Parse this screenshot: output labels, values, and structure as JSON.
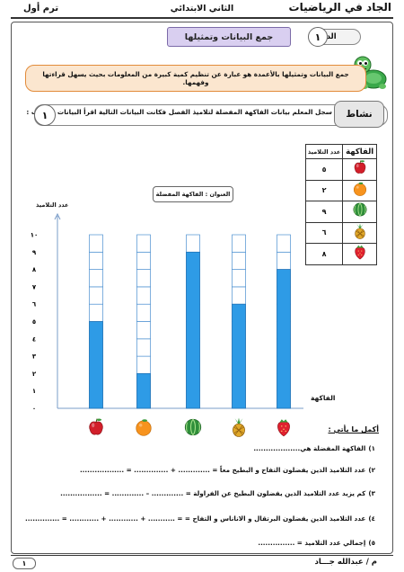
{
  "header": {
    "left": "ترم أول",
    "center": "الثاني الابتدائي",
    "right": "الجاد في الرياضيات"
  },
  "lesson": {
    "label": "الدرس",
    "number": "١",
    "title": "جمع البيانات وتمثيلها"
  },
  "definition": "جمع البيانات وتمثيلها بالأعمدة هو عبارة عن تنظيم كمية كبيرة من المعلومات بحيث يسهل قراءتها وفهمها.",
  "activity": {
    "label": "نشاط",
    "number": "١",
    "text": "سجل المعلم بيانات الفاكهة المفضلة لتلاميذ الفصل فكانت البيانات التالية اقرأ البيانات ثم أجب :"
  },
  "table": {
    "headers": [
      "الفاكهة",
      "عدد التلاميذ"
    ],
    "rows": [
      {
        "fruit": "apple-icon",
        "count": "٥"
      },
      {
        "fruit": "orange-icon",
        "count": "٢"
      },
      {
        "fruit": "watermelon-icon",
        "count": "٩"
      },
      {
        "fruit": "pineapple-icon",
        "count": "٦"
      },
      {
        "fruit": "strawberry-icon",
        "count": "٨"
      }
    ]
  },
  "chart_data": {
    "type": "bar",
    "title": "العنوان : الفاكهة المفضلة",
    "ylabel": "عدد التلاميذ",
    "xlabel": "الفاكهة",
    "y_ticks": [
      "٠",
      "١",
      "٢",
      "٣",
      "٤",
      "٥",
      "٦",
      "٧",
      "٨",
      "٩",
      "١٠"
    ],
    "ylim": [
      0,
      10
    ],
    "categories": [
      "apple-icon",
      "orange-icon",
      "watermelon-icon",
      "pineapple-icon",
      "strawberry-icon"
    ],
    "values": [
      5,
      2,
      9,
      6,
      8
    ],
    "bar_color": "#2e9be6"
  },
  "questions": {
    "heading": "أكمل ما يأتي :",
    "items": [
      {
        "n": "١)",
        "text": "الفاكهة المفضلة هي..................."
      },
      {
        "n": "٢)",
        "text": "عدد التلاميذ الذين يفضلون التفاح و البطيخ معاً = ............. + .............. = .................."
      },
      {
        "n": "٣)",
        "text": "كم يزيد عدد التلاميذ الذين يفضلون البطيخ عن الفراولة = ............. – ............. = ................."
      },
      {
        "n": "٤)",
        "text": "عدد التلاميذ الذين يفضلون البرتقال و الاناناس و التفاح = = ........... + ............ + ............ = .............."
      },
      {
        "n": "٥)",
        "text": "إجمالي عدد التلاميذ = ..............."
      }
    ]
  },
  "footer": {
    "page": "١",
    "author": "م / عبدالله جـــاد"
  }
}
